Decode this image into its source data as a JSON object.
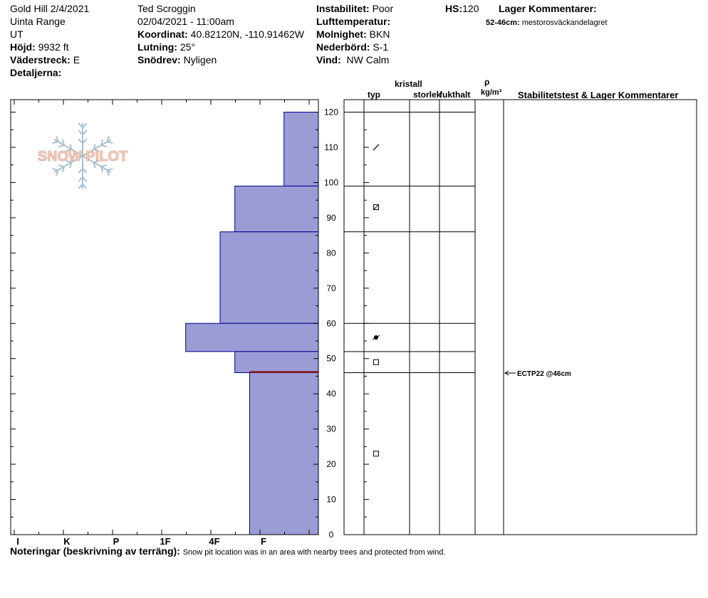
{
  "header": {
    "location": "Gold Hill 2/4/2021",
    "range": "Uinta Range",
    "state": "UT",
    "elevation_label": "Höjd:",
    "elevation_value": "9932 ft",
    "aspect_label": "Väderstreck:",
    "aspect_value": "E",
    "details_label": "Detaljerna:",
    "observer": "Ted Scroggin",
    "datetime": "02/04/2021 - 11:00am",
    "coord_label": "Koordinat:",
    "coord_value": "40.82120N, -110.91462W",
    "slope_label": "Lutning:",
    "slope_value": "25°",
    "wind_loading_label": "Snödrev:",
    "wind_loading_value": "Nyligen",
    "instability_label": "Instabilitet:",
    "instability_value": "Poor",
    "air_temp_label": "Lufttemperatur:",
    "sky_label": "Molnighet:",
    "sky_value": "BKN",
    "precip_label": "Nederbörd:",
    "precip_value": "S-1",
    "wind_label": "Vind:",
    "wind_value": "NW Calm",
    "hs_label": "HS:",
    "hs_value": "120",
    "layer_comments_title": "Lager Kommentarer:",
    "layer_comment_range": "52-46cm:",
    "layer_comment_text": "mestorosväckandelagret"
  },
  "columns": {
    "crystal": "kristall",
    "type": "typ",
    "size": "storlek",
    "moisture": "fukthalt",
    "rho": "ρ",
    "density_unit": "kg/m³",
    "stability": "Stabilitetstest & Lager Kommentarer"
  },
  "logo_text": "SNOW PILOT",
  "notes": {
    "label": "Noteringar (beskrivning av terräng):",
    "text": "Snow pit location was in an area with nearby trees and protected from wind."
  },
  "colors": {
    "layer_fill": "#9b9bd6",
    "layer_stroke": "#00008b",
    "failure_line": "#8b1a1a",
    "logo_text": "#e8b8a6",
    "logo_flake": "#a9c0d0"
  },
  "chart_data": {
    "type": "snow-profile",
    "y_axis": {
      "range": [
        0,
        120
      ],
      "ticks": [
        0,
        10,
        20,
        30,
        40,
        50,
        60,
        70,
        80,
        90,
        100,
        110,
        120
      ],
      "unit": "cm"
    },
    "hardness_scale": [
      "I",
      "K",
      "P",
      "1F",
      "4F",
      "F"
    ],
    "hardness_ticks": [
      {
        "label": "I",
        "value": 6
      },
      {
        "label": "K",
        "value": 5
      },
      {
        "label": "P",
        "value": 4
      },
      {
        "label": "1F",
        "value": 3
      },
      {
        "label": "4F",
        "value": 2
      },
      {
        "label": "F",
        "value": 1
      }
    ],
    "hardness_max": 6.7,
    "layers": [
      {
        "top": 120,
        "bottom": 99,
        "hardness": 0.7
      },
      {
        "top": 99,
        "bottom": 86,
        "hardness": 1.7
      },
      {
        "top": 86,
        "bottom": 60,
        "hardness": 2.0
      },
      {
        "top": 60,
        "bottom": 52,
        "hardness": 2.7
      },
      {
        "top": 52,
        "bottom": 46,
        "hardness": 1.7
      },
      {
        "top": 46,
        "bottom": 0,
        "hardness": 1.4
      }
    ],
    "weak_layer_depth": 46,
    "grain_types": [
      {
        "height": 110,
        "symbol": "decomposing"
      },
      {
        "height": 93,
        "symbol": "faceted-rounded"
      },
      {
        "height": 56,
        "symbol": "melt-freeze"
      },
      {
        "height": 49,
        "symbol": "faceted"
      },
      {
        "height": 23,
        "symbol": "faceted"
      }
    ],
    "stability_tests": [
      {
        "height": 46,
        "label": "ECTP22 @46cm"
      }
    ]
  }
}
